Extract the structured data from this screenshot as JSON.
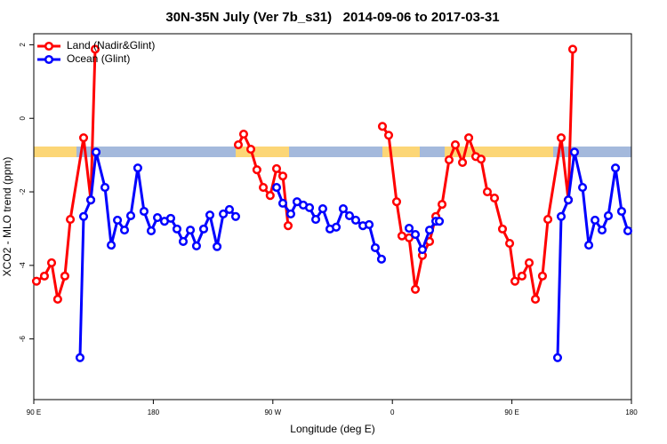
{
  "chart_data": {
    "type": "line",
    "title": "30N-35N July (Ver 7b_s31)   2014-09-06 to 2017-03-31",
    "xlabel": "Longitude (deg E)",
    "ylabel": "XCO2 - MLO trend (ppm)",
    "xlim": [
      90,
      540
    ],
    "ylim": [
      -7.65,
      2.3
    ],
    "xticks": [
      {
        "value": 90,
        "label": "90 E"
      },
      180,
      {
        "value": 270,
        "label": "90 W"
      },
      {
        "value": 360,
        "label": "0"
      },
      {
        "value": 450,
        "label": "90 E"
      },
      {
        "value": 540,
        "label": "180"
      }
    ],
    "yticks": [
      -6,
      -4,
      -2,
      0,
      2
    ],
    "legend": "top-left",
    "series": [
      {
        "name": "Land (Nadir&Glint)",
        "color": "#ff0000",
        "x": [
          92,
          98,
          103.4,
          108,
          113.4,
          117.5,
          127.5,
          132.9,
          136.2,
          null,
          244,
          248,
          253.4,
          258,
          262.8,
          268,
          272.8,
          277.5,
          281.5,
          null,
          352.5,
          357.2,
          363.2,
          367.2,
          372.6,
          377.3,
          382.6,
          388,
          392.7,
          397.4,
          402.7,
          407.4,
          412.8,
          417.5,
          422.8,
          426.8,
          431.5,
          436.9,
          442.9,
          448.3,
          452.3,
          457.6,
          463,
          467.7,
          473,
          477.1,
          487.1,
          492.5,
          495.8
        ],
        "values": [
          -4.43,
          -4.29,
          -3.93,
          -4.92,
          -4.29,
          -2.75,
          -0.53,
          -2.22,
          1.88,
          null,
          -0.72,
          -0.43,
          -0.84,
          -1.4,
          -1.88,
          -2.1,
          -1.37,
          -1.57,
          -2.92,
          null,
          -0.22,
          -0.46,
          -2.27,
          -3.2,
          -3.25,
          -4.65,
          -3.73,
          -3.35,
          -2.67,
          -2.34,
          -1.13,
          -0.72,
          -1.2,
          -0.53,
          -1.04,
          -1.11,
          -2.0,
          -2.17,
          -3.01,
          -3.4,
          -4.43,
          -4.29,
          -3.93,
          -4.92,
          -4.29,
          -2.75,
          -0.53,
          -2.22,
          1.88
        ]
      },
      {
        "name": "Ocean (Glint)",
        "color": "#0000ff",
        "x": [
          124.8,
          127.5,
          132.9,
          136.9,
          143.6,
          148.3,
          153,
          158.3,
          163,
          168.3,
          173,
          178.4,
          183.1,
          188.4,
          193.1,
          197.8,
          202.5,
          207.9,
          212.5,
          217.9,
          222.6,
          228,
          232.7,
          237.3,
          242,
          null,
          272.8,
          277.5,
          283.5,
          288.2,
          292.9,
          297.6,
          302.3,
          307.6,
          313,
          317.7,
          323,
          327.7,
          332.4,
          337.8,
          342.5,
          347.1,
          351.8,
          null,
          372.6,
          377.3,
          382.6,
          388,
          392.7,
          395.4,
          null,
          484.4,
          487.1,
          492.5,
          497.1,
          503.2,
          507.9,
          512.6,
          517.9,
          522.6,
          528,
          532.6,
          537.3
        ],
        "values": [
          -6.51,
          -2.67,
          -2.22,
          -0.92,
          -1.88,
          -3.45,
          -2.77,
          -3.04,
          -2.65,
          -1.35,
          -2.53,
          -3.06,
          -2.7,
          -2.8,
          -2.72,
          -3.01,
          -3.35,
          -3.04,
          -3.47,
          -3.01,
          -2.63,
          -3.49,
          -2.6,
          -2.48,
          -2.67,
          null,
          -1.88,
          -2.31,
          -2.6,
          -2.27,
          -2.36,
          -2.43,
          -2.75,
          -2.46,
          -3.01,
          -2.96,
          -2.46,
          -2.65,
          -2.77,
          -2.92,
          -2.89,
          -3.52,
          -3.83,
          null,
          -2.99,
          -3.16,
          -3.57,
          -3.04,
          -2.8,
          -2.8,
          null,
          -6.51,
          -2.67,
          -2.22,
          -0.92,
          -1.88,
          -3.45,
          -2.77,
          -3.04,
          -2.65,
          -1.35,
          -2.53,
          -3.06
        ]
      }
    ]
  }
}
